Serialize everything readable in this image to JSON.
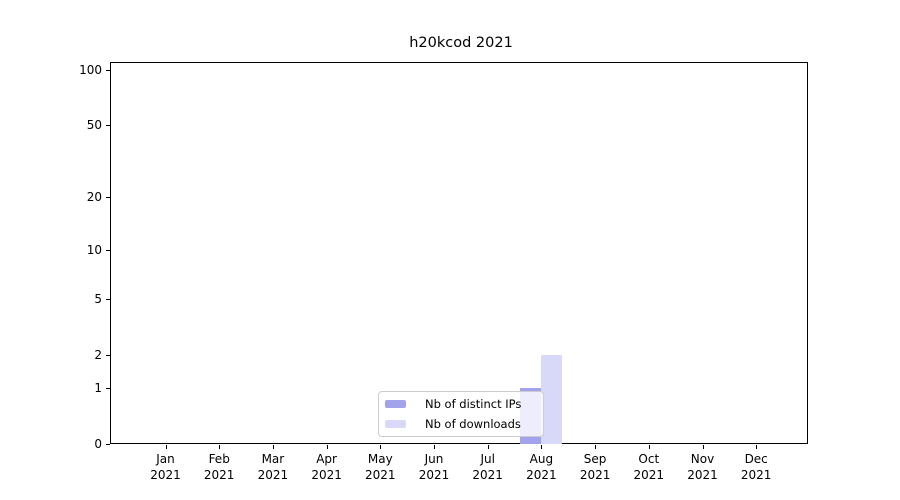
{
  "title": "h20kcod 2021",
  "colors": {
    "distinct_ips": "#a3a3ed",
    "downloads": "#d8d8f9",
    "axis": "#000000",
    "grid_major": "#d9d9d9",
    "grid_minor": "#efefef",
    "legend_border": "#cccccc",
    "background": "#ffffff"
  },
  "chart_data": {
    "type": "bar",
    "title": "h20kcod 2021",
    "x": {
      "months": [
        "Jan",
        "Feb",
        "Mar",
        "Apr",
        "May",
        "Jun",
        "Jul",
        "Aug",
        "Sep",
        "Oct",
        "Nov",
        "Dec"
      ],
      "year": "2021"
    },
    "y_axis": {
      "scale": "log1p",
      "tick_values": [
        0,
        1,
        2,
        5,
        10,
        20,
        50,
        100
      ],
      "minor_grid_values": [
        3,
        4,
        6,
        7,
        8,
        9,
        30,
        40,
        60,
        70,
        80,
        90
      ],
      "range": [
        0,
        110
      ],
      "grid": true
    },
    "series": [
      {
        "name": "Nb of distinct IPs",
        "color_key": "distinct_ips",
        "values": [
          0,
          0,
          0,
          0,
          0,
          0,
          0,
          1,
          0,
          0,
          0,
          0
        ]
      },
      {
        "name": "Nb of downloads",
        "color_key": "downloads",
        "values": [
          0,
          0,
          0,
          0,
          0,
          0,
          0,
          2,
          0,
          0,
          0,
          0
        ]
      }
    ],
    "legend": {
      "position": "lower-center",
      "entries": [
        "Nb of distinct IPs",
        "Nb of downloads"
      ]
    }
  }
}
